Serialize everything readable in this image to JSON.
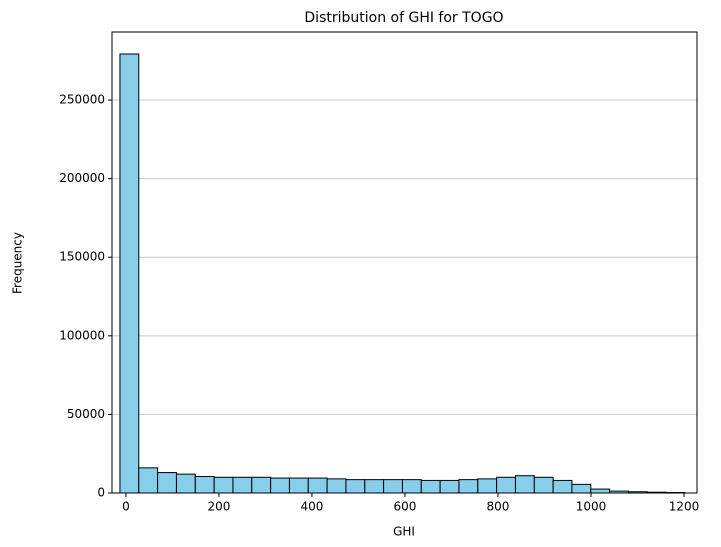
{
  "chart_data": {
    "type": "histogram",
    "title": "Distribution of GHI for TOGO",
    "x_label": "GHI",
    "y_label": "Frequency",
    "bins": [
      -12.9,
      27.6,
      68.1,
      108.6,
      149.1,
      189.6,
      230.1,
      270.6,
      311.1,
      351.6,
      392.1,
      432.6,
      473.1,
      513.6,
      554.1,
      594.6,
      635.1,
      675.6,
      716.1,
      756.6,
      797.1,
      837.6,
      878.1,
      918.6,
      959.1,
      999.6,
      1040.1,
      1080.6,
      1121.1,
      1161.6,
      1202.1
    ],
    "values": [
      279300,
      16000,
      13000,
      12000,
      10500,
      10000,
      10000,
      10000,
      9500,
      9500,
      9500,
      9000,
      8500,
      8500,
      8500,
      8500,
      8000,
      8000,
      8500,
      9000,
      10000,
      11000,
      10000,
      8000,
      5500,
      2500,
      1200,
      800,
      500,
      300
    ],
    "color": "#87ceeb",
    "edge_color": "#000000",
    "xlim": [
      -30,
      1228
    ],
    "ylim": [
      0,
      293300
    ],
    "xticks": [
      0,
      200,
      400,
      600,
      800,
      1000,
      1200
    ],
    "yticks": [
      0,
      50000,
      100000,
      150000,
      200000,
      250000
    ],
    "grid": "y"
  }
}
